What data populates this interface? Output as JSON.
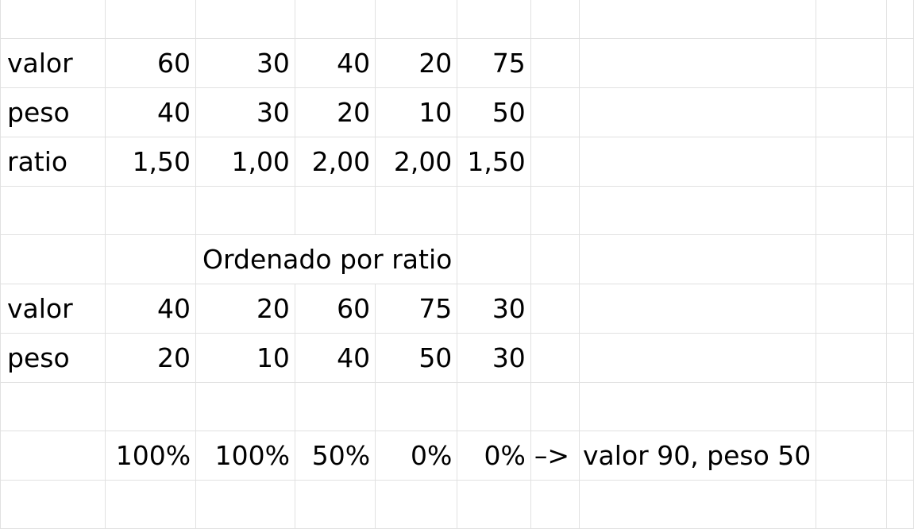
{
  "sheet": {
    "rows": [
      [
        "",
        "",
        "",
        "",
        "",
        "",
        "",
        "",
        "",
        ""
      ],
      [
        "valor",
        "60",
        "30",
        "40",
        "20",
        "75",
        "",
        "",
        "",
        ""
      ],
      [
        "peso",
        "40",
        "30",
        "20",
        "10",
        "50",
        "",
        "",
        "",
        ""
      ],
      [
        "ratio",
        "1,50",
        "1,00",
        "2,00",
        "2,00",
        "1,50",
        "",
        "",
        "",
        ""
      ],
      [
        "",
        "",
        "",
        "",
        "",
        "",
        "",
        "",
        "",
        ""
      ],
      [
        "",
        "",
        "Ordenado por ratio",
        "",
        "",
        "",
        "",
        "",
        "",
        ""
      ],
      [
        "valor",
        "40",
        "20",
        "60",
        "75",
        "30",
        "",
        "",
        "",
        ""
      ],
      [
        "peso",
        "20",
        "10",
        "40",
        "50",
        "30",
        "",
        "",
        "",
        ""
      ],
      [
        "",
        "",
        "",
        "",
        "",
        "",
        "",
        "",
        "",
        ""
      ],
      [
        "",
        "100%",
        "100%",
        "50%",
        "0%",
        "0%",
        "–>",
        "valor 90, peso 50",
        "",
        ""
      ],
      [
        "",
        "",
        "",
        "",
        "",
        "",
        "",
        "",
        "",
        ""
      ]
    ]
  }
}
